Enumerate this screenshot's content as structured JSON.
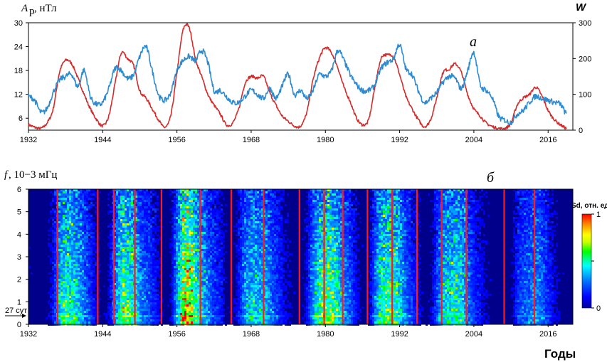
{
  "chart_data": [
    {
      "type": "line",
      "panel_label": "а",
      "ylabel_left_symbol": "A",
      "ylabel_left_sub": "p",
      "ylabel_left_unit": ", нТл",
      "ylabel_right": "W",
      "xlim": [
        1932,
        2020
      ],
      "ylim_left": [
        3,
        30
      ],
      "ylim_right": [
        0,
        300
      ],
      "xticks": [
        "1932",
        "1944",
        "1956",
        "1968",
        "1980",
        "1992",
        "2004",
        "2016"
      ],
      "yticks_left": [
        "6",
        "12",
        "18",
        "24",
        "30"
      ],
      "yticks_right": [
        "0",
        "100",
        "200",
        "300"
      ],
      "grid": false,
      "series": [
        {
          "axis": "right",
          "color": "#d42a2a",
          "x": [
            1932.0,
            1933.0,
            1934.0,
            1935.0,
            1936.0,
            1937.0,
            1938.0,
            1939.0,
            1940.0,
            1941.0,
            1942.0,
            1943.0,
            1944.0,
            1945.0,
            1946.0,
            1947.0,
            1948.0,
            1949.0,
            1950.0,
            1951.0,
            1952.0,
            1953.0,
            1954.0,
            1955.0,
            1956.0,
            1957.0,
            1958.0,
            1959.0,
            1960.0,
            1961.0,
            1962.0,
            1963.0,
            1964.0,
            1965.0,
            1966.0,
            1967.0,
            1968.0,
            1969.0,
            1970.0,
            1971.0,
            1972.0,
            1973.0,
            1974.0,
            1975.0,
            1976.0,
            1977.0,
            1978.0,
            1979.0,
            1980.0,
            1981.0,
            1982.0,
            1983.0,
            1984.0,
            1985.0,
            1986.0,
            1987.0,
            1988.0,
            1989.0,
            1990.0,
            1991.0,
            1992.0,
            1993.0,
            1994.0,
            1995.0,
            1996.0,
            1997.0,
            1998.0,
            1999.0,
            2000.0,
            2001.0,
            2002.0,
            2003.0,
            2004.0,
            2005.0,
            2006.0,
            2007.0,
            2008.0,
            2009.0,
            2010.0,
            2011.0,
            2012.0,
            2013.0,
            2014.0,
            2015.0,
            2016.0,
            2017.0,
            2018.0,
            2019.0
          ],
          "y": [
            15,
            8,
            5,
            20,
            60,
            160,
            195,
            185,
            145,
            100,
            60,
            30,
            12,
            40,
            130,
            215,
            200,
            180,
            110,
            90,
            60,
            30,
            8,
            40,
            160,
            280,
            285,
            200,
            150,
            100,
            70,
            45,
            15,
            20,
            60,
            130,
            150,
            145,
            150,
            105,
            70,
            40,
            25,
            12,
            12,
            50,
            140,
            200,
            230,
            215,
            175,
            120,
            80,
            35,
            15,
            30,
            120,
            200,
            210,
            205,
            155,
            95,
            60,
            30,
            10,
            30,
            90,
            160,
            170,
            185,
            160,
            100,
            60,
            40,
            20,
            10,
            5,
            5,
            20,
            70,
            90,
            100,
            120,
            95,
            55,
            30,
            15,
            5
          ]
        },
        {
          "axis": "left",
          "color": "#2f8bd0",
          "x": [
            1932.0,
            1933.0,
            1934.0,
            1935.0,
            1936.0,
            1937.0,
            1938.0,
            1939.0,
            1940.0,
            1941.0,
            1942.0,
            1943.0,
            1944.0,
            1945.0,
            1946.0,
            1947.0,
            1948.0,
            1949.0,
            1950.0,
            1951.0,
            1952.0,
            1953.0,
            1954.0,
            1955.0,
            1956.0,
            1957.0,
            1958.0,
            1959.0,
            1960.0,
            1961.0,
            1962.0,
            1963.0,
            1964.0,
            1965.0,
            1966.0,
            1967.0,
            1968.0,
            1969.0,
            1970.0,
            1971.0,
            1972.0,
            1973.0,
            1974.0,
            1975.0,
            1976.0,
            1977.0,
            1978.0,
            1979.0,
            1980.0,
            1981.0,
            1982.0,
            1983.0,
            1984.0,
            1985.0,
            1986.0,
            1987.0,
            1988.0,
            1989.0,
            1990.0,
            1991.0,
            1992.0,
            1993.0,
            1994.0,
            1995.0,
            1996.0,
            1997.0,
            1998.0,
            1999.0,
            2000.0,
            2001.0,
            2002.0,
            2003.0,
            2004.0,
            2005.0,
            2006.0,
            2007.0,
            2008.0,
            2009.0,
            2010.0,
            2011.0,
            2012.0,
            2013.0,
            2014.0,
            2015.0,
            2016.0,
            2017.0,
            2018.0,
            2019.0
          ],
          "y": [
            11.5,
            10.5,
            7.5,
            8.5,
            12.5,
            15.5,
            16.5,
            17.0,
            14.0,
            18.0,
            11.5,
            9.5,
            10.0,
            13.5,
            18.5,
            18.0,
            16.0,
            17.0,
            21.5,
            24.0,
            18.0,
            12.0,
            10.5,
            12.5,
            18.0,
            20.5,
            21.5,
            20.5,
            23.0,
            20.0,
            13.0,
            13.0,
            11.5,
            10.0,
            10.0,
            11.5,
            13.0,
            12.0,
            11.0,
            13.5,
            11.0,
            14.0,
            17.0,
            12.0,
            13.0,
            11.0,
            13.0,
            17.0,
            16.5,
            18.0,
            23.0,
            20.5,
            17.0,
            14.5,
            13.0,
            13.0,
            14.5,
            18.5,
            20.0,
            21.0,
            24.5,
            18.5,
            17.0,
            13.0,
            10.0,
            11.0,
            12.5,
            15.0,
            16.5,
            16.0,
            13.5,
            18.0,
            22.5,
            14.5,
            13.0,
            11.0,
            6.5,
            5.5,
            5.0,
            7.0,
            8.0,
            10.0,
            11.5,
            11.0,
            10.5,
            10.0,
            9.5,
            7.0
          ]
        }
      ]
    },
    {
      "type": "heatmap",
      "panel_label": "б",
      "ylabel_symbol": "f",
      "ylabel_unit": ", 10−3 мГц",
      "xlabel": "Годы",
      "xlim": [
        1932,
        2020
      ],
      "ylim": [
        0,
        6
      ],
      "xticks": [
        "1932",
        "1944",
        "1956",
        "1968",
        "1980",
        "1992",
        "2004",
        "2016"
      ],
      "yticks": [
        "0",
        "1",
        "2",
        "3",
        "4",
        "5",
        "6"
      ],
      "annotation": "27 сут",
      "annotation_freq": 0.43,
      "colorbar": {
        "title": "Sd, отн. ед.",
        "min_label": "0",
        "max_label": "1",
        "colors": [
          "#0000a0",
          "#0000ff",
          "#0080ff",
          "#00ffff",
          "#00ff00",
          "#c8ff00",
          "#ffff00",
          "#ff8000",
          "#ff0000"
        ]
      },
      "red_lines_years": [
        1936.7,
        1943.2,
        1945.8,
        1949.2,
        1953.5,
        1959.8,
        1964.8,
        1970.0,
        1975.8,
        1979.8,
        1982.8,
        1986.8,
        1990.8,
        1994.8,
        1998.8,
        2002.8,
        2008.9,
        2013.8
      ]
    }
  ]
}
